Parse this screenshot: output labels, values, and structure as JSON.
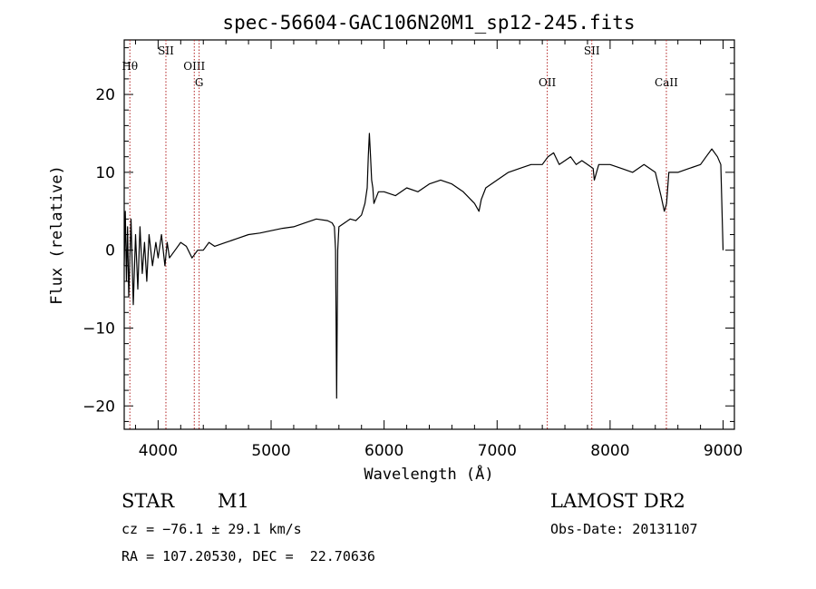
{
  "chart_data": {
    "type": "line",
    "title": "spec-56604-GAC106N20M1_sp12-245.fits",
    "xlabel": "Wavelength (Å)",
    "ylabel": "Flux (relative)",
    "xlim": [
      3700,
      9100
    ],
    "ylim": [
      -23,
      27
    ],
    "xticks": [
      4000,
      5000,
      6000,
      7000,
      8000,
      9000
    ],
    "xtick_labels": [
      "4000",
      "5000",
      "6000",
      "7000",
      "8000",
      "9000"
    ],
    "yticks": [
      -20,
      -10,
      0,
      10,
      20
    ],
    "ytick_labels": [
      "−20",
      "−10",
      "0",
      "10",
      "20"
    ],
    "grid": false,
    "line_color": "#000000",
    "marker_color": "#b22222",
    "series": [
      {
        "x": [
          3700,
          3710,
          3720,
          3730,
          3740,
          3760,
          3780,
          3800,
          3820,
          3840,
          3860,
          3880,
          3900,
          3920,
          3950,
          3980,
          4000,
          4030,
          4060,
          4080,
          4100,
          4150,
          4200,
          4250,
          4300,
          4350,
          4400,
          4450,
          4500,
          4600,
          4700,
          4800,
          4900,
          5000,
          5100,
          5200,
          5300,
          5400,
          5500,
          5540,
          5560,
          5570,
          5580,
          5590,
          5600,
          5650,
          5700,
          5750,
          5800,
          5830,
          5850,
          5860,
          5870,
          5880,
          5890,
          5900,
          5910,
          5950,
          6000,
          6100,
          6200,
          6300,
          6400,
          6500,
          6600,
          6700,
          6800,
          6840,
          6860,
          6900,
          7000,
          7050,
          7100,
          7200,
          7300,
          7400,
          7450,
          7500,
          7550,
          7600,
          7650,
          7700,
          7750,
          7800,
          7850,
          7860,
          7900,
          8000,
          8100,
          8200,
          8300,
          8400,
          8450,
          8480,
          8500,
          8520,
          8600,
          8700,
          8800,
          8850,
          8900,
          8950,
          8980,
          9000
        ],
        "values": [
          -2,
          5,
          -4,
          3,
          -6,
          4,
          -7,
          2,
          -5,
          3,
          -3,
          1,
          -4,
          2,
          -2,
          1,
          -1,
          2,
          -2,
          1,
          -1,
          0,
          1,
          0.5,
          -1,
          0,
          0,
          1,
          0.5,
          1,
          1.5,
          2,
          2.2,
          2.5,
          2.8,
          3,
          3.5,
          4,
          3.8,
          3.5,
          3,
          0,
          -19,
          0,
          3,
          3.5,
          4,
          3.8,
          4.5,
          6,
          8,
          12,
          15,
          12,
          9,
          8,
          6,
          7.5,
          7.5,
          7,
          8,
          7.5,
          8.5,
          9,
          8.5,
          7.5,
          6,
          5,
          6.5,
          8,
          9,
          9.5,
          10,
          10.5,
          11,
          11,
          12,
          12.5,
          11,
          11.5,
          12,
          11,
          11.5,
          11,
          10.5,
          9,
          11,
          11,
          10.5,
          10,
          11,
          10,
          7,
          5,
          6,
          10,
          10,
          10.5,
          11,
          12,
          13,
          12,
          11,
          0
        ]
      }
    ],
    "line_markers": [
      {
        "label": "Hθ",
        "x": 3750,
        "row": 1
      },
      {
        "label": "SII",
        "x": 4069,
        "row": 0
      },
      {
        "label": "OIII",
        "x": 4320,
        "row": 1
      },
      {
        "label": "G",
        "x": 4363,
        "row": 2
      },
      {
        "label": "OII",
        "x": 7444,
        "row": 2
      },
      {
        "label": "SII",
        "x": 7838,
        "row": 0
      },
      {
        "label": "CaII",
        "x": 8498,
        "row": 2
      }
    ]
  },
  "footer": {
    "object_type": "STAR",
    "subclass": "M1",
    "survey": "LAMOST DR2",
    "cz": "cz = −76.1 ± 29.1 km/s",
    "obs_date": "Obs-Date: 20131107",
    "coords": "RA = 107.20530, DEC =  22.70636"
  }
}
